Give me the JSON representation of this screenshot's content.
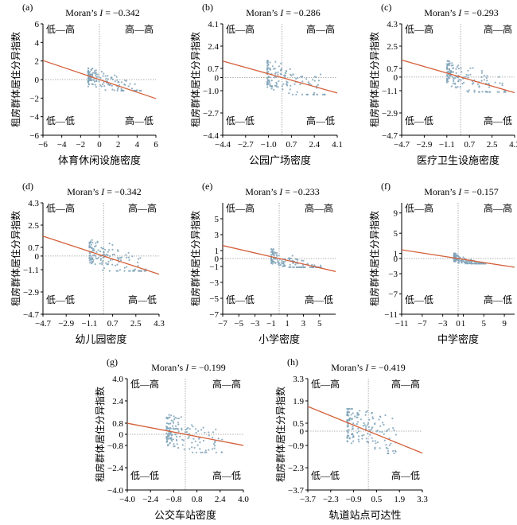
{
  "chart_data": [
    {
      "type": "scatter",
      "panel_label": "(a)",
      "moran_prefix": "Moran’s ",
      "moran_var": "I",
      "moran_value": " = −0.342",
      "xlabel": "体育休闲设施密度",
      "ylabel": "租房群体居住分异指数",
      "xticks": [
        "−6",
        "−4",
        "−2",
        "0",
        "2",
        "4",
        "6"
      ],
      "xtick_values": [
        -6,
        -4,
        -2,
        0,
        2,
        4,
        6
      ],
      "yticks": [
        "−6",
        "−4",
        "−2",
        "0",
        "2",
        "4",
        "6"
      ],
      "ytick_values": [
        -6,
        -4,
        -2,
        0,
        2,
        4,
        6
      ],
      "xlim": [
        -6,
        6
      ],
      "ylim": [
        -6,
        6
      ],
      "slope": -0.342,
      "quadrants": {
        "top_left": "低—高",
        "top_right": "高—高",
        "bottom_left": "低—低",
        "bottom_right": "高—低"
      },
      "points_seed": 11,
      "points_count": 140,
      "x_spread": [
        -1.2,
        4.5
      ],
      "y_spread": [
        -1.2,
        1.2
      ]
    },
    {
      "type": "scatter",
      "panel_label": "(b)",
      "moran_prefix": "Moran’s ",
      "moran_var": "I",
      "moran_value": " = −0.286",
      "xlabel": "公园广场密度",
      "ylabel": "租房群体居住分异指数",
      "xticks": [
        "−4.4",
        "−2.7",
        "−1.0",
        "0.7",
        "2.4",
        "4.1"
      ],
      "xtick_values": [
        -4.4,
        -2.7,
        -1.0,
        0.7,
        2.4,
        4.1
      ],
      "yticks": [
        "−4.4",
        "−2.7",
        "−1.0",
        "0",
        "0.7",
        "2.4",
        "4.1"
      ],
      "ytick_values": [
        -4.4,
        -2.7,
        -1.0,
        0,
        0.7,
        2.4,
        4.1
      ],
      "xlim": [
        -4.4,
        4.1
      ],
      "ylim": [
        -4.4,
        4.1
      ],
      "slope": -0.286,
      "quadrants": {
        "top_left": "低—高",
        "top_right": "高—高",
        "bottom_left": "低—低",
        "bottom_right": "高—低"
      },
      "points_seed": 23,
      "points_count": 140,
      "x_spread": [
        -1.1,
        3.2
      ],
      "y_spread": [
        -1.3,
        1.3
      ]
    },
    {
      "type": "scatter",
      "panel_label": "(c)",
      "moran_prefix": "Moran’s ",
      "moran_var": "I",
      "moran_value": " = −0.293",
      "xlabel": "医疗卫生设施密度",
      "ylabel": "租房群体居住分异指数",
      "xticks": [
        "−4.7",
        "−2.9",
        "−1.1",
        "0.7",
        "2.5",
        "4.3"
      ],
      "xtick_values": [
        -4.7,
        -2.9,
        -1.1,
        0.7,
        2.5,
        4.3
      ],
      "yticks": [
        "−4.7",
        "−2.9",
        "−1.1",
        "0",
        "0.7",
        "2.5",
        "4.3"
      ],
      "ytick_values": [
        -4.7,
        -2.9,
        -1.1,
        0,
        0.7,
        2.5,
        4.3
      ],
      "xlim": [
        -4.7,
        4.3
      ],
      "ylim": [
        -4.7,
        4.3
      ],
      "slope": -0.293,
      "quadrants": {
        "top_left": "低—高",
        "top_right": "高—高",
        "bottom_left": "低—低",
        "bottom_right": "高—低"
      },
      "points_seed": 37,
      "points_count": 140,
      "x_spread": [
        -1.1,
        3.6
      ],
      "y_spread": [
        -1.2,
        1.3
      ]
    },
    {
      "type": "scatter",
      "panel_label": "(d)",
      "moran_prefix": "Moran’s ",
      "moran_var": "I",
      "moran_value": " =  −0.342",
      "xlabel": "幼儿园密度",
      "ylabel": "租房群体居住分异指数",
      "xticks": [
        "−4.7",
        "−2.9",
        "−1.1",
        "0.7",
        "2.5",
        "4.3"
      ],
      "xtick_values": [
        -4.7,
        -2.9,
        -1.1,
        0.7,
        2.5,
        4.3
      ],
      "yticks": [
        "−4.7",
        "−2.9",
        "−1.1",
        "0",
        "0.7",
        "2.5",
        "4.3"
      ],
      "ytick_values": [
        -4.7,
        -2.9,
        -1.1,
        0,
        0.7,
        2.5,
        4.3
      ],
      "xlim": [
        -4.7,
        4.3
      ],
      "ylim": [
        -4.7,
        4.3
      ],
      "slope": -0.342,
      "quadrants": {
        "top_left": "低—高",
        "top_right": "高—高",
        "bottom_left": "低—低",
        "bottom_right": "高—低"
      },
      "points_seed": 41,
      "points_count": 140,
      "x_spread": [
        -1.1,
        3.3
      ],
      "y_spread": [
        -1.2,
        1.3
      ]
    },
    {
      "type": "scatter",
      "panel_label": "(e)",
      "moran_prefix": "Moran’s ",
      "moran_var": "I",
      "moran_value": " =  −0.233",
      "xlabel": "小学密度",
      "ylabel": "租房群体居住分异指数",
      "xticks": [
        "−7",
        "−5",
        "−3",
        "−1",
        "1",
        "3",
        "5"
      ],
      "xtick_values": [
        -7,
        -5,
        -3,
        -1,
        1,
        3,
        5
      ],
      "yticks": [
        "−7",
        "−5",
        "−3",
        "−1",
        "0",
        "1",
        "3",
        "5"
      ],
      "ytick_values": [
        -7,
        -5,
        -3,
        -1,
        0,
        1,
        3,
        5
      ],
      "xlim": [
        -7,
        7
      ],
      "ylim": [
        -7,
        7
      ],
      "slope": -0.233,
      "quadrants": {
        "top_left": "低—高",
        "top_right": "高—高",
        "bottom_left": "低—低",
        "bottom_right": "高—低"
      },
      "points_seed": 53,
      "points_count": 140,
      "x_spread": [
        -1.0,
        5.2
      ],
      "y_spread": [
        -1.1,
        1.2
      ]
    },
    {
      "type": "scatter",
      "panel_label": "(f)",
      "moran_prefix": "Moran’s ",
      "moran_var": "I",
      "moran_value": " =  −0.157",
      "xlabel": "中学密度",
      "ylabel": "租房群体居住分异指数",
      "xticks": [
        "−11",
        "−7",
        "−3",
        "0",
        "1",
        "5",
        "9"
      ],
      "xtick_values": [
        -11,
        -7,
        -3,
        0,
        1,
        5,
        9
      ],
      "yticks": [
        "−11",
        "−7",
        "−3",
        "0",
        "1",
        "5",
        "9"
      ],
      "ytick_values": [
        -11,
        -7,
        -3,
        0,
        1,
        5,
        9
      ],
      "xlim": [
        -11,
        11
      ],
      "ylim": [
        -11,
        11
      ],
      "slope": -0.157,
      "quadrants": {
        "top_left": "低—高",
        "top_right": "高—高",
        "bottom_left": "低—低",
        "bottom_right": "高—低"
      },
      "points_seed": 67,
      "points_count": 140,
      "x_spread": [
        -0.8,
        5.5
      ],
      "y_spread": [
        -1.0,
        1.0
      ]
    },
    {
      "type": "scatter",
      "panel_label": "(g)",
      "moran_prefix": "Moran’s ",
      "moran_var": "I",
      "moran_value": " = −0.199",
      "xlabel": "公交车站密度",
      "ylabel": "租房群体居住分异指数",
      "xticks": [
        "−4.0",
        "−2.4",
        "−0.8",
        "0.8",
        "2.4",
        "4.0"
      ],
      "xtick_values": [
        -4.0,
        -2.4,
        -0.8,
        0.8,
        2.4,
        4.0
      ],
      "yticks": [
        "−4.0",
        "−2.4",
        "−0.8",
        "0",
        "0.8",
        "2.4",
        "4.0"
      ],
      "ytick_values": [
        -4.0,
        -2.4,
        -0.8,
        0,
        0.8,
        2.4,
        4.0
      ],
      "xlim": [
        -4.0,
        4.0
      ],
      "ylim": [
        -4.0,
        4.0
      ],
      "slope": -0.199,
      "quadrants": {
        "top_left": "低—高",
        "top_right": "高—高",
        "bottom_left": "低—低",
        "bottom_right": "高—低"
      },
      "points_seed": 79,
      "points_count": 150,
      "x_spread": [
        -1.3,
        2.6
      ],
      "y_spread": [
        -1.3,
        1.4
      ]
    },
    {
      "type": "scatter",
      "panel_label": "(h)",
      "moran_prefix": "Moran’s ",
      "moran_var": "I",
      "moran_value": " = −0.419",
      "xlabel": "轨道站点可达性",
      "ylabel": "租房群体居住分异指数",
      "xticks": [
        "−3.7",
        "−2.3",
        "−0.9",
        "0.5",
        "1.9",
        "3.3"
      ],
      "xtick_values": [
        -3.7,
        -2.3,
        -0.9,
        0.5,
        1.9,
        3.3
      ],
      "yticks": [
        "−3.7",
        "−2.3",
        "−0.9",
        "0",
        "0.5",
        "1.9",
        "3.3"
      ],
      "ytick_values": [
        -3.7,
        -2.3,
        -0.9,
        0,
        0.5,
        1.9,
        3.3
      ],
      "xlim": [
        -3.7,
        3.3
      ],
      "ylim": [
        -3.7,
        3.3
      ],
      "slope": -0.419,
      "quadrants": {
        "top_left": "低—高",
        "top_right": "高—高",
        "bottom_left": "低—低",
        "bottom_right": "高—低"
      },
      "points_seed": 97,
      "points_count": 160,
      "x_spread": [
        -1.3,
        1.7
      ],
      "y_spread": [
        -1.4,
        1.4
      ]
    }
  ],
  "colors": {
    "regression_line": "#d4603a",
    "points": "#7fa3b8",
    "axis": "#000000",
    "zero_line": "#999999"
  }
}
